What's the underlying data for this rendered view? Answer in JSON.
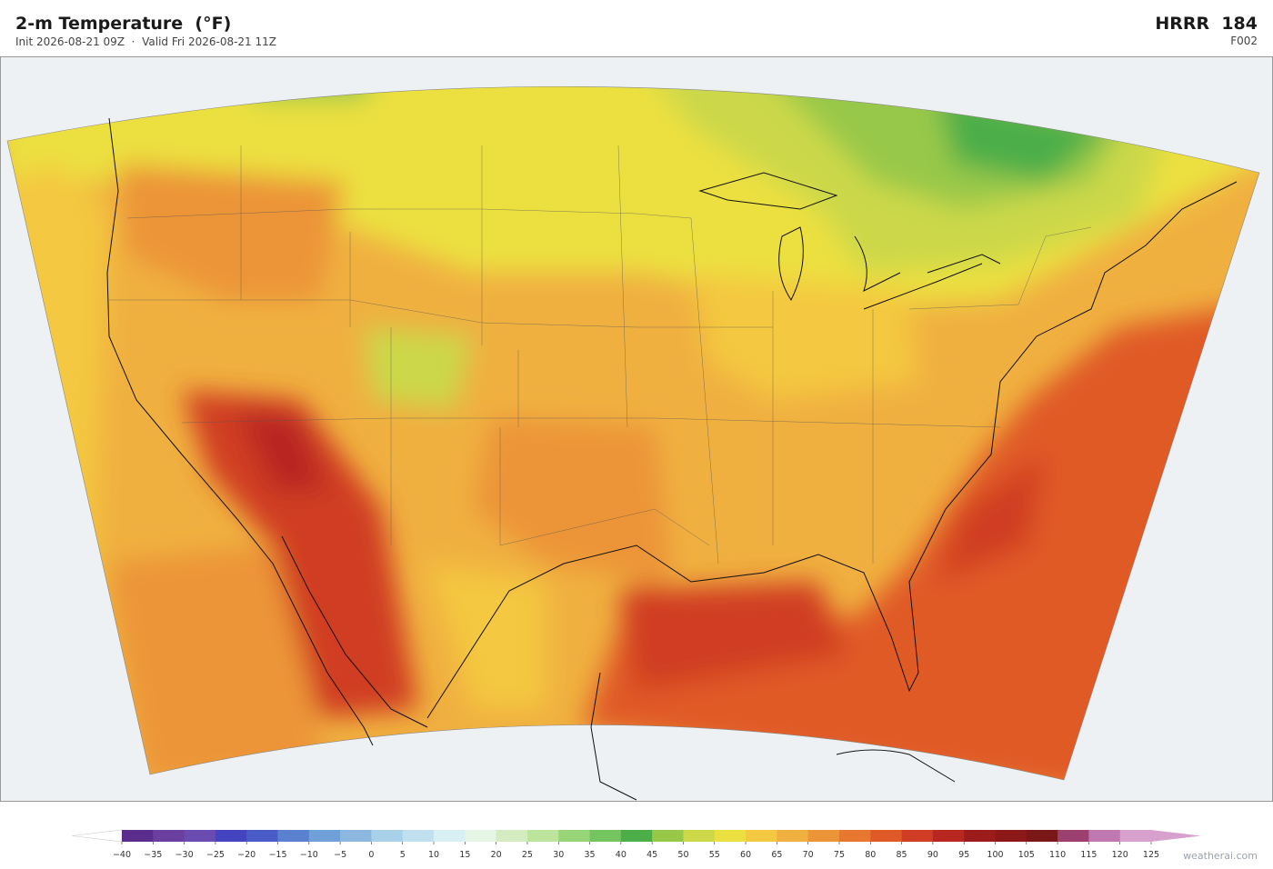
{
  "header": {
    "title": "2-m Temperature  (°F)",
    "subtitle": "Init 2026-08-21 09Z  ·  Valid Fri 2026-08-21 11Z",
    "model": "HRRR  184",
    "forecast": "F002"
  },
  "colorbar": {
    "ticks": [
      {
        "value": -40,
        "label": "−40"
      },
      {
        "value": -35,
        "label": "−35"
      },
      {
        "value": -30,
        "label": "−30"
      },
      {
        "value": -25,
        "label": "−25"
      },
      {
        "value": -20,
        "label": "−20"
      },
      {
        "value": -15,
        "label": "−15"
      },
      {
        "value": -10,
        "label": "−10"
      },
      {
        "value": -5,
        "label": "−5"
      },
      0,
      5,
      10,
      15,
      20,
      25,
      30,
      35,
      40,
      45,
      50,
      55,
      60,
      65,
      70,
      75,
      80,
      85,
      90,
      95,
      100,
      105,
      110,
      115,
      120,
      125
    ],
    "colors": [
      "#5a2d8c",
      "#6a3fa0",
      "#6a4cb0",
      "#4444c0",
      "#4a5cc8",
      "#5a80d0",
      "#70a0d8",
      "#8cb8e0",
      "#a8d0e8",
      "#c0e0f0",
      "#d8f0f4",
      "#e6f6e6",
      "#d4ecc0",
      "#bce49c",
      "#98d478",
      "#74c460",
      "#4cae48",
      "#98c848",
      "#ccd848",
      "#ece040",
      "#f4c840",
      "#f0b040",
      "#ec9438",
      "#e87830",
      "#e05a28",
      "#d03c24",
      "#b82820",
      "#9c1c1c",
      "#8c1818",
      "#7a1818",
      "#9c4070",
      "#c078b0",
      "#d8a0cc"
    ],
    "under_color": "#ffffff",
    "over_color": "#d8a0cc"
  },
  "footer": {
    "credit": "weatherai.com"
  }
}
